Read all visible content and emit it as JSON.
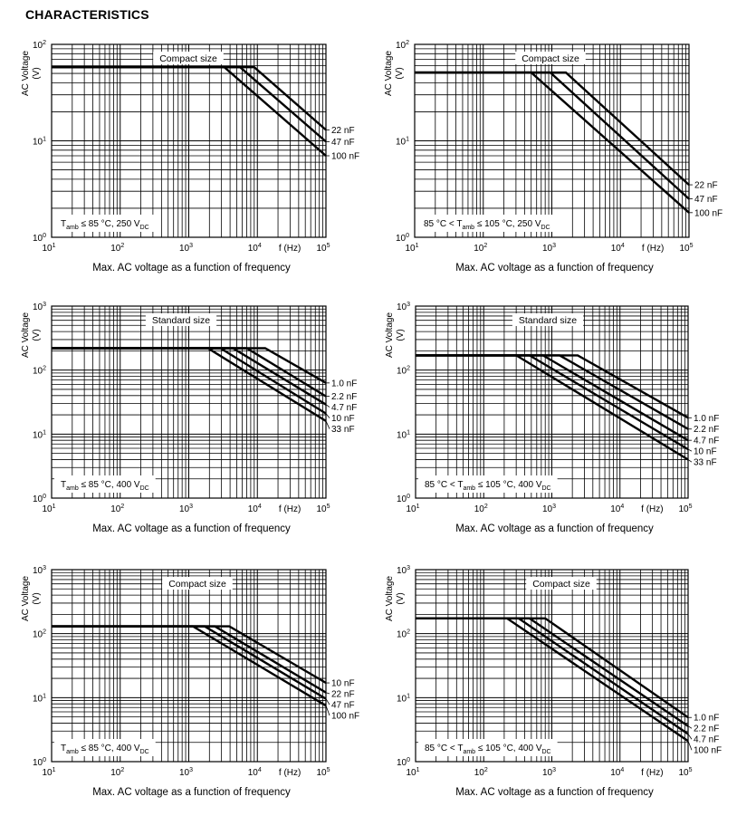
{
  "page_title": "CHARACTERISTICS",
  "chart_data": [
    {
      "type": "line",
      "x_scale": "log",
      "y_scale": "log",
      "xlim": [
        10,
        100000
      ],
      "ylim": [
        1,
        100
      ],
      "x_ticks": [
        10,
        100,
        1000,
        10000,
        100000
      ],
      "y_ticks": [
        1,
        10,
        100
      ],
      "grid": true,
      "ylabel": "AC Voltage",
      "yunit": "(V)",
      "xlabel": "f (Hz)",
      "caption": "Max. AC voltage as a function of frequency",
      "title_box": "Compact size",
      "condition": [
        {
          "t": "T"
        },
        {
          "sub": "amb"
        },
        {
          "t": " ≤ 85 °C, 250 V"
        },
        {
          "sub": "DC"
        }
      ],
      "series": [
        {
          "name": "22 nF",
          "points": [
            [
              10,
              58
            ],
            [
              9000,
              58
            ],
            [
              100000,
              13
            ]
          ]
        },
        {
          "name": "47 nF",
          "points": [
            [
              10,
              58
            ],
            [
              5600,
              58
            ],
            [
              100000,
              9.8
            ]
          ]
        },
        {
          "name": "100 nF",
          "points": [
            [
              10,
              58
            ],
            [
              3300,
              58
            ],
            [
              100000,
              7
            ]
          ]
        }
      ]
    },
    {
      "type": "line",
      "x_scale": "log",
      "y_scale": "log",
      "xlim": [
        10,
        100000
      ],
      "ylim": [
        1,
        100
      ],
      "x_ticks": [
        10,
        100,
        1000,
        10000,
        100000
      ],
      "y_ticks": [
        1,
        10,
        100
      ],
      "grid": true,
      "ylabel": "AC Voltage",
      "yunit": "(V)",
      "xlabel": "f (Hz)",
      "caption": "Max. AC voltage as a function of frequency",
      "title_box": "Compact size",
      "condition": [
        {
          "t": "85 °C < T"
        },
        {
          "sub": "amb"
        },
        {
          "t": " ≤ 105 °C, 250 V"
        },
        {
          "sub": "DC"
        }
      ],
      "series": [
        {
          "name": "22 nF",
          "points": [
            [
              10,
              51
            ],
            [
              1600,
              51
            ],
            [
              100000,
              3.5
            ]
          ]
        },
        {
          "name": "47 nF",
          "points": [
            [
              10,
              51
            ],
            [
              950,
              51
            ],
            [
              100000,
              2.5
            ]
          ]
        },
        {
          "name": "100 nF",
          "points": [
            [
              10,
              51
            ],
            [
              500,
              51
            ],
            [
              100000,
              1.8
            ]
          ]
        }
      ]
    },
    {
      "type": "line",
      "x_scale": "log",
      "y_scale": "log",
      "xlim": [
        10,
        100000
      ],
      "ylim": [
        1,
        1000
      ],
      "x_ticks": [
        10,
        100,
        1000,
        10000,
        100000
      ],
      "y_ticks": [
        1,
        10,
        100,
        1000
      ],
      "grid": true,
      "ylabel": "AC Voltage",
      "yunit": "(V)",
      "xlabel": "f (Hz)",
      "caption": "Max. AC voltage as a function of frequency",
      "title_box": "Standard size",
      "condition": [
        {
          "t": "T"
        },
        {
          "sub": "amb"
        },
        {
          "t": " ≤ 85 °C, 400 V"
        },
        {
          "sub": "DC"
        }
      ],
      "series": [
        {
          "name": "1.0 nF",
          "points": [
            [
              10,
              220
            ],
            [
              13000,
              220
            ],
            [
              100000,
              63
            ]
          ]
        },
        {
          "name": "2.2 nF",
          "points": [
            [
              10,
              220
            ],
            [
              7000,
              220
            ],
            [
              100000,
              39
            ]
          ]
        },
        {
          "name": "4.7 nF",
          "points": [
            [
              10,
              220
            ],
            [
              4400,
              220
            ],
            [
              100000,
              29
            ]
          ]
        },
        {
          "name": "10 nF",
          "points": [
            [
              10,
              220
            ],
            [
              2900,
              220
            ],
            [
              100000,
              21
            ]
          ]
        },
        {
          "name": "33 nF",
          "points": [
            [
              10,
              220
            ],
            [
              1900,
              220
            ],
            [
              100000,
              16
            ]
          ]
        }
      ]
    },
    {
      "type": "line",
      "x_scale": "log",
      "y_scale": "log",
      "xlim": [
        10,
        100000
      ],
      "ylim": [
        1,
        1000
      ],
      "x_ticks": [
        10,
        100,
        1000,
        10000,
        100000
      ],
      "y_ticks": [
        1,
        10,
        100,
        1000
      ],
      "grid": true,
      "ylabel": "AC Voltage",
      "yunit": "(V)",
      "xlabel": "f (Hz)",
      "caption": "Max. AC voltage as a function of frequency",
      "title_box": "Standard size",
      "condition": [
        {
          "t": "85 °C < T"
        },
        {
          "sub": "amb"
        },
        {
          "t": " ≤ 105 °C, 400 V"
        },
        {
          "sub": "DC"
        }
      ],
      "series": [
        {
          "name": "1.0 nF",
          "points": [
            [
              10,
              170
            ],
            [
              2400,
              170
            ],
            [
              100000,
              18
            ]
          ]
        },
        {
          "name": "2.2 nF",
          "points": [
            [
              10,
              170
            ],
            [
              1300,
              170
            ],
            [
              100000,
              12
            ]
          ]
        },
        {
          "name": "4.7 nF",
          "points": [
            [
              10,
              170
            ],
            [
              740,
              170
            ],
            [
              100000,
              8
            ]
          ]
        },
        {
          "name": "10 nF",
          "points": [
            [
              10,
              170
            ],
            [
              470,
              170
            ],
            [
              100000,
              5.8
            ]
          ]
        },
        {
          "name": "33 nF",
          "points": [
            [
              10,
              170
            ],
            [
              300,
              170
            ],
            [
              100000,
              4
            ]
          ]
        }
      ]
    },
    {
      "type": "line",
      "x_scale": "log",
      "y_scale": "log",
      "xlim": [
        10,
        100000
      ],
      "ylim": [
        1,
        1000
      ],
      "x_ticks": [
        10,
        100,
        1000,
        10000,
        100000
      ],
      "y_ticks": [
        1,
        10,
        100,
        1000
      ],
      "grid": true,
      "ylabel": "AC Voltage",
      "yunit": "(V)",
      "xlabel": "f (Hz)",
      "caption": "Max. AC voltage as a function of frequency",
      "title_box": "Compact size",
      "condition": [
        {
          "t": "T"
        },
        {
          "sub": "amb"
        },
        {
          "t": " ≤ 85 °C, 400 V"
        },
        {
          "sub": "DC"
        }
      ],
      "series": [
        {
          "name": "10 nF",
          "points": [
            [
              10,
              130
            ],
            [
              3900,
              130
            ],
            [
              100000,
              17
            ]
          ]
        },
        {
          "name": "22 nF",
          "points": [
            [
              10,
              130
            ],
            [
              2400,
              130
            ],
            [
              100000,
              12
            ]
          ]
        },
        {
          "name": "47 nF",
          "points": [
            [
              10,
              130
            ],
            [
              1700,
              130
            ],
            [
              100000,
              9.6
            ]
          ]
        },
        {
          "name": "100 nF",
          "points": [
            [
              10,
              130
            ],
            [
              1150,
              130
            ],
            [
              100000,
              7.5
            ]
          ]
        }
      ]
    },
    {
      "type": "line",
      "x_scale": "log",
      "y_scale": "log",
      "xlim": [
        10,
        100000
      ],
      "ylim": [
        1,
        1000
      ],
      "x_ticks": [
        10,
        100,
        1000,
        10000,
        100000
      ],
      "y_ticks": [
        1,
        10,
        100,
        1000
      ],
      "grid": true,
      "ylabel": "AC Voltage",
      "yunit": "(V)",
      "xlabel": "f (Hz)",
      "caption": "Max. AC voltage as a function of frequency",
      "title_box": "Compact size",
      "condition": [
        {
          "t": "85 °C < T"
        },
        {
          "sub": "amb"
        },
        {
          "t": " ≤ 105 °C, 400 V"
        },
        {
          "sub": "DC"
        }
      ],
      "series": [
        {
          "name": "1.0 nF",
          "points": [
            [
              10,
              173
            ],
            [
              800,
              173
            ],
            [
              100000,
              4.9
            ]
          ]
        },
        {
          "name": "2.2 nF",
          "points": [
            [
              10,
              173
            ],
            [
              470,
              173
            ],
            [
              100000,
              3.6
            ]
          ]
        },
        {
          "name": "4.7 nF",
          "points": [
            [
              10,
              173
            ],
            [
              325,
              173
            ],
            [
              100000,
              2.7
            ]
          ]
        },
        {
          "name": "100 nF",
          "points": [
            [
              10,
              173
            ],
            [
              220,
              173
            ],
            [
              100000,
              2.1
            ]
          ]
        }
      ]
    }
  ]
}
